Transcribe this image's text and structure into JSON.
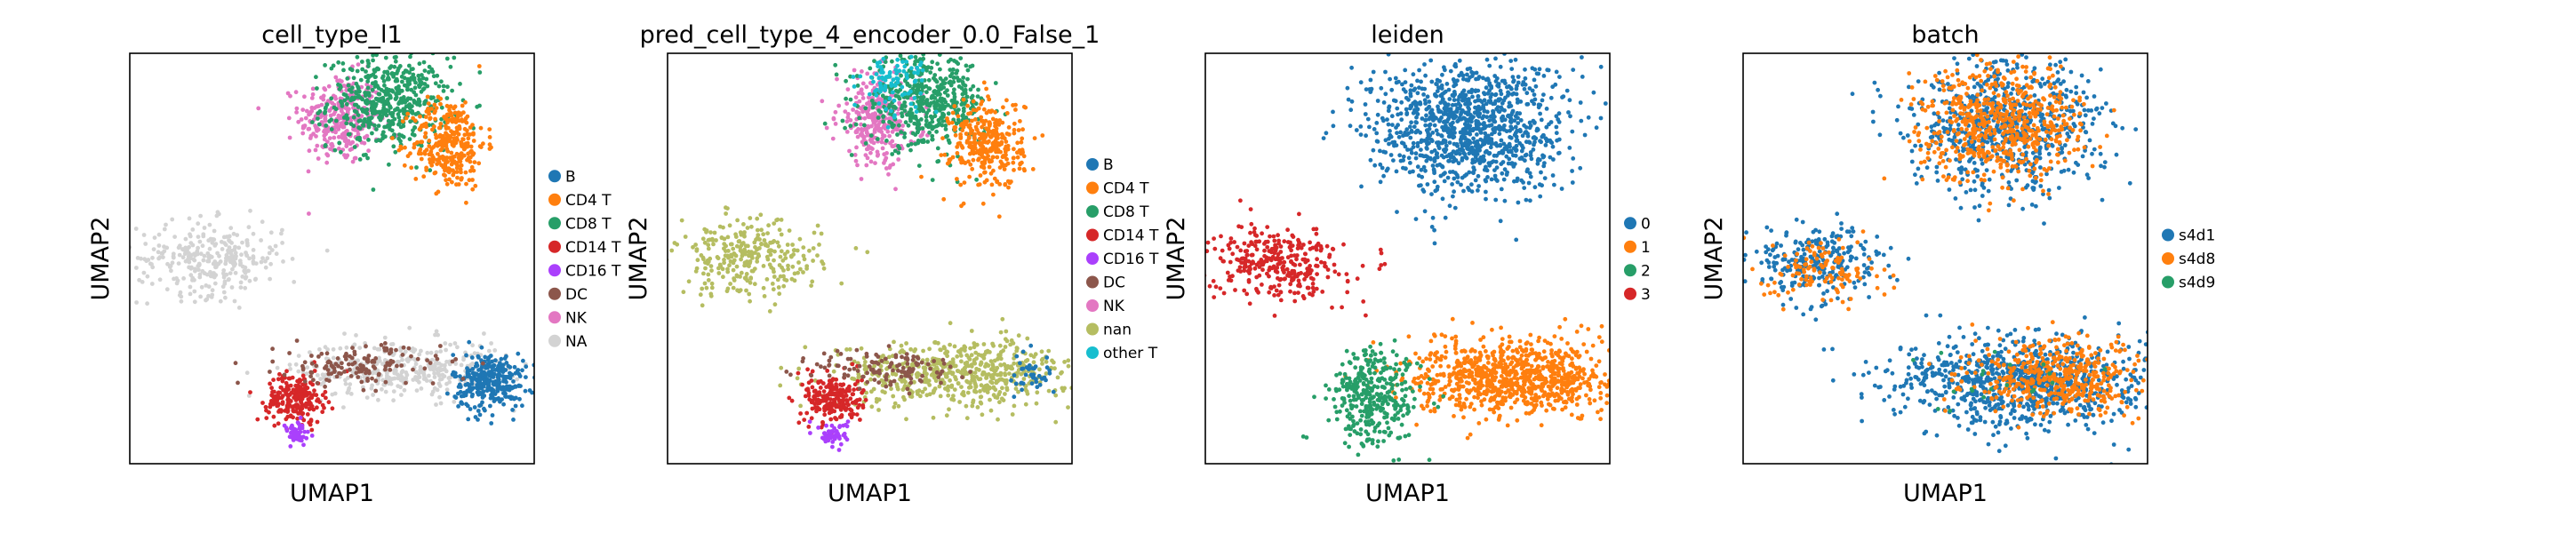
{
  "figure": {
    "colors": {
      "blue": "#1f77b4",
      "orange": "#ff7f0e",
      "green": "#279e68",
      "red": "#d62728",
      "purple": "#aa40fc",
      "brown": "#8c564b",
      "pink": "#e377c2",
      "olive": "#b5bd61",
      "cyan": "#17becf",
      "lightgray": "#d3d3d3"
    }
  },
  "chart_data": [
    {
      "type": "scatter",
      "title": "cell_type_l1",
      "xlabel": "UMAP1",
      "ylabel": "UMAP2",
      "grid": false,
      "ticks": false,
      "legend_placement": "right",
      "legend": [
        {
          "label": "B",
          "color": "#1f77b4"
        },
        {
          "label": "CD4 T",
          "color": "#ff7f0e"
        },
        {
          "label": "CD8 T",
          "color": "#279e68"
        },
        {
          "label": "CD14 T",
          "color": "#d62728"
        },
        {
          "label": "CD16 T",
          "color": "#aa40fc"
        },
        {
          "label": "DC",
          "color": "#8c564b"
        },
        {
          "label": "NK",
          "color": "#e377c2"
        },
        {
          "label": "NA",
          "color": "#d3d3d3"
        }
      ],
      "clusters": [
        {
          "label": "NK",
          "cx": 5.2,
          "cy": 8.4,
          "sx": 0.5,
          "sy": 0.55,
          "n": 300
        },
        {
          "label": "CD8 T",
          "cx": 6.4,
          "cy": 8.8,
          "sx": 0.75,
          "sy": 0.55,
          "n": 500
        },
        {
          "label": "CD4 T",
          "cx": 7.9,
          "cy": 7.8,
          "sx": 0.45,
          "sy": 0.55,
          "n": 320
        },
        {
          "label": "NA",
          "cx": 2.0,
          "cy": 5.0,
          "sx": 0.9,
          "sy": 0.45,
          "n": 300
        },
        {
          "label": "NA",
          "cx": 6.8,
          "cy": 2.3,
          "sx": 1.3,
          "sy": 0.35,
          "n": 380
        },
        {
          "label": "B",
          "cx": 8.9,
          "cy": 2.0,
          "sx": 0.45,
          "sy": 0.35,
          "n": 320
        },
        {
          "label": "CD14 T",
          "cx": 4.1,
          "cy": 1.6,
          "sx": 0.35,
          "sy": 0.3,
          "n": 220
        },
        {
          "label": "CD16 T",
          "cx": 4.1,
          "cy": 0.7,
          "sx": 0.18,
          "sy": 0.15,
          "n": 60
        },
        {
          "label": "DC",
          "cx": 5.7,
          "cy": 2.4,
          "sx": 1.0,
          "sy": 0.25,
          "n": 140
        }
      ]
    },
    {
      "type": "scatter",
      "title": "pred_cell_type_4_encoder_0.0_False_1",
      "xlabel": "UMAP1",
      "ylabel": "UMAP2",
      "grid": false,
      "ticks": false,
      "legend_placement": "right",
      "legend": [
        {
          "label": "B",
          "color": "#1f77b4"
        },
        {
          "label": "CD4 T",
          "color": "#ff7f0e"
        },
        {
          "label": "CD8 T",
          "color": "#279e68"
        },
        {
          "label": "CD14 T",
          "color": "#d62728"
        },
        {
          "label": "CD16 T",
          "color": "#aa40fc"
        },
        {
          "label": "DC",
          "color": "#8c564b"
        },
        {
          "label": "NK",
          "color": "#e377c2"
        },
        {
          "label": "nan",
          "color": "#b5bd61"
        },
        {
          "label": "other T",
          "color": "#17becf"
        }
      ],
      "clusters": [
        {
          "label": "NK",
          "cx": 5.2,
          "cy": 8.4,
          "sx": 0.5,
          "sy": 0.55,
          "n": 300
        },
        {
          "label": "CD8 T",
          "cx": 6.4,
          "cy": 8.8,
          "sx": 0.75,
          "sy": 0.55,
          "n": 480
        },
        {
          "label": "other T",
          "cx": 5.6,
          "cy": 9.3,
          "sx": 0.4,
          "sy": 0.35,
          "n": 90
        },
        {
          "label": "CD4 T",
          "cx": 7.9,
          "cy": 7.8,
          "sx": 0.45,
          "sy": 0.55,
          "n": 320
        },
        {
          "label": "nan",
          "cx": 2.0,
          "cy": 5.0,
          "sx": 0.9,
          "sy": 0.45,
          "n": 300
        },
        {
          "label": "nan",
          "cx": 7.2,
          "cy": 2.2,
          "sx": 1.5,
          "sy": 0.4,
          "n": 600
        },
        {
          "label": "CD14 T",
          "cx": 4.1,
          "cy": 1.6,
          "sx": 0.35,
          "sy": 0.3,
          "n": 220
        },
        {
          "label": "CD16 T",
          "cx": 4.1,
          "cy": 0.7,
          "sx": 0.18,
          "sy": 0.15,
          "n": 60
        },
        {
          "label": "DC",
          "cx": 5.5,
          "cy": 2.3,
          "sx": 0.9,
          "sy": 0.25,
          "n": 120
        },
        {
          "label": "B",
          "cx": 9.0,
          "cy": 2.2,
          "sx": 0.3,
          "sy": 0.3,
          "n": 40
        }
      ]
    },
    {
      "type": "scatter",
      "title": "leiden",
      "xlabel": "UMAP1",
      "ylabel": "UMAP2",
      "grid": false,
      "ticks": false,
      "legend_placement": "right",
      "legend": [
        {
          "label": "0",
          "color": "#1f77b4"
        },
        {
          "label": "1",
          "color": "#ff7f0e"
        },
        {
          "label": "2",
          "color": "#279e68"
        },
        {
          "label": "3",
          "color": "#d62728"
        }
      ],
      "clusters": [
        {
          "label": "0",
          "cx": 6.5,
          "cy": 8.2,
          "sx": 1.2,
          "sy": 0.8,
          "n": 1100
        },
        {
          "label": "3",
          "cx": 1.8,
          "cy": 4.9,
          "sx": 0.8,
          "sy": 0.45,
          "n": 320
        },
        {
          "label": "1",
          "cx": 7.7,
          "cy": 2.1,
          "sx": 1.3,
          "sy": 0.45,
          "n": 900
        },
        {
          "label": "2",
          "cx": 4.2,
          "cy": 1.6,
          "sx": 0.55,
          "sy": 0.6,
          "n": 350
        }
      ]
    },
    {
      "type": "scatter",
      "title": "batch",
      "xlabel": "UMAP1",
      "ylabel": "UMAP2",
      "grid": false,
      "ticks": false,
      "legend_placement": "right",
      "legend": [
        {
          "label": "s4d1",
          "color": "#1f77b4"
        },
        {
          "label": "s4d8",
          "color": "#ff7f0e"
        },
        {
          "label": "s4d9",
          "color": "#279e68"
        }
      ],
      "clusters": [
        {
          "label": "s4d1",
          "cx": 6.5,
          "cy": 8.2,
          "sx": 1.2,
          "sy": 0.8,
          "n": 700
        },
        {
          "label": "s4d8",
          "cx": 6.4,
          "cy": 8.3,
          "sx": 1.0,
          "sy": 0.7,
          "n": 600
        },
        {
          "label": "s4d1",
          "cx": 1.8,
          "cy": 4.9,
          "sx": 0.8,
          "sy": 0.45,
          "n": 260
        },
        {
          "label": "s4d8",
          "cx": 2.0,
          "cy": 4.7,
          "sx": 0.7,
          "sy": 0.4,
          "n": 120
        },
        {
          "label": "s4d1",
          "cx": 7.0,
          "cy": 2.0,
          "sx": 1.6,
          "sy": 0.55,
          "n": 900
        },
        {
          "label": "s4d8",
          "cx": 7.8,
          "cy": 2.1,
          "sx": 1.1,
          "sy": 0.45,
          "n": 450
        },
        {
          "label": "s4d9",
          "cx": 6.5,
          "cy": 2.1,
          "sx": 1.5,
          "sy": 0.5,
          "n": 20
        }
      ]
    }
  ]
}
